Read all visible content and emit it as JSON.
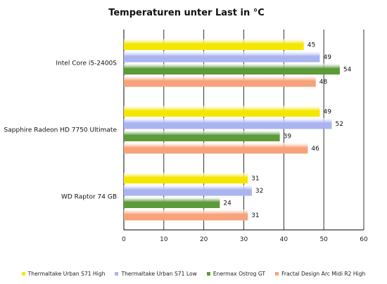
{
  "chart_data": {
    "type": "bar",
    "orientation": "horizontal",
    "title": "Temperaturen unter Last in °C",
    "categories": [
      "Intel Core i5-2400S",
      "Sapphire Radeon HD 7750 Ultimate",
      "WD Raptor 74 GB"
    ],
    "series": [
      {
        "name": "Thermaltake Urban S71 High",
        "color": "#f5e600",
        "values": [
          45,
          49,
          31
        ]
      },
      {
        "name": "Thermaltake Urban S71 Low",
        "color": "#aab4f0",
        "values": [
          49,
          52,
          32
        ]
      },
      {
        "name": "Enermax Ostrog GT",
        "color": "#5c9a3a",
        "values": [
          54,
          39,
          24
        ]
      },
      {
        "name": "Fractal Design Arc Midi R2 High",
        "color": "#f7a27a",
        "values": [
          48,
          46,
          31
        ]
      }
    ],
    "xlim": [
      0,
      60
    ],
    "xticks": [
      0,
      10,
      20,
      30,
      40,
      50,
      60
    ],
    "grid": true,
    "legend_position": "bottom"
  }
}
